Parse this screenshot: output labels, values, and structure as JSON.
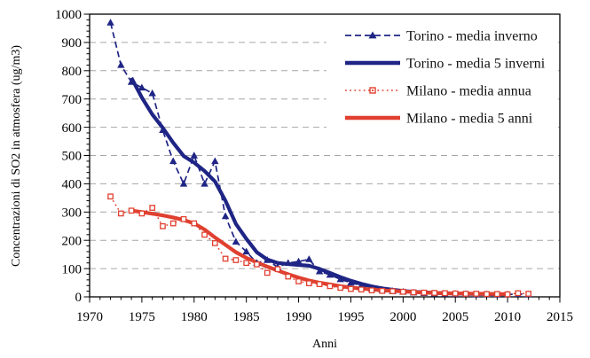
{
  "chart_data": {
    "type": "line",
    "title": "",
    "xlabel": "Anni",
    "ylabel": "Concentrazioni di SO2 in atmosfera (ug/m3)",
    "xlim": [
      1970,
      2015
    ],
    "ylim": [
      0,
      1000
    ],
    "xticks": [
      1970,
      1975,
      1980,
      1985,
      1990,
      1995,
      2000,
      2005,
      2010,
      2015
    ],
    "yticks": [
      0,
      100,
      200,
      300,
      400,
      500,
      600,
      700,
      800,
      900,
      1000
    ],
    "x_minor_step": 1,
    "y_minor_step": 20,
    "grid": "horizontal-dashed",
    "gridline_color": "#a6a6a6",
    "background": "#ffffff",
    "legend_position": "top-right",
    "series": [
      {
        "name": "Torino - media inverno",
        "color": "#1f2585",
        "line": "dashed",
        "width": 1.7,
        "marker": "triangle",
        "x": [
          1972,
          1973,
          1974,
          1975,
          1976,
          1977,
          1978,
          1979,
          1980,
          1981,
          1982,
          1983,
          1984,
          1985,
          1986,
          1987,
          1988,
          1989,
          1990,
          1991,
          1992,
          1993,
          1994,
          1995,
          1996,
          1997,
          1998,
          1999,
          2000,
          2001,
          2002,
          2003,
          2004,
          2005,
          2006,
          2007,
          2008,
          2009,
          2010,
          2011,
          2012
        ],
        "y": [
          970,
          820,
          760,
          740,
          720,
          590,
          480,
          400,
          500,
          400,
          480,
          285,
          195,
          160,
          120,
          130,
          105,
          120,
          125,
          133,
          90,
          78,
          62,
          50,
          40,
          30,
          25,
          20,
          18,
          15,
          13,
          12,
          11,
          10,
          10,
          9,
          9,
          8,
          8,
          10,
          9
        ]
      },
      {
        "name": "Torino - media 5 inverni",
        "color": "#1f2585",
        "line": "solid",
        "width": 4.2,
        "marker": "none",
        "x": [
          1974,
          1975,
          1976,
          1977,
          1978,
          1979,
          1980,
          1981,
          1982,
          1983,
          1984,
          1985,
          1986,
          1987,
          1988,
          1989,
          1990,
          1991,
          1992,
          1993,
          1994,
          1995,
          1996,
          1997,
          1998,
          1999,
          2000,
          2001,
          2002,
          2003,
          2004,
          2005,
          2006,
          2007,
          2008,
          2009,
          2010
        ],
        "y": [
          775,
          705,
          645,
          598,
          545,
          498,
          475,
          445,
          408,
          340,
          258,
          205,
          158,
          132,
          120,
          116,
          113,
          110,
          99,
          85,
          70,
          57,
          46,
          37,
          30,
          25,
          21,
          18,
          16,
          14,
          13,
          12,
          11,
          10,
          10,
          9,
          9
        ]
      },
      {
        "name": "Milano - media annua",
        "color": "#e0402f",
        "line": "dotted",
        "width": 1.5,
        "marker": "square-open",
        "x": [
          1972,
          1973,
          1974,
          1975,
          1976,
          1977,
          1978,
          1979,
          1980,
          1981,
          1982,
          1983,
          1984,
          1985,
          1986,
          1987,
          1988,
          1989,
          1990,
          1991,
          1992,
          1993,
          1994,
          1995,
          1996,
          1997,
          1998,
          1999,
          2000,
          2001,
          2002,
          2003,
          2004,
          2005,
          2006,
          2007,
          2008,
          2009,
          2010,
          2011,
          2012
        ],
        "y": [
          355,
          295,
          305,
          295,
          315,
          250,
          260,
          275,
          260,
          220,
          190,
          135,
          130,
          120,
          115,
          85,
          98,
          72,
          55,
          48,
          45,
          38,
          32,
          28,
          26,
          23,
          21,
          20,
          18,
          16,
          15,
          14,
          13,
          12,
          11,
          11,
          10,
          10,
          9,
          13,
          11
        ]
      },
      {
        "name": "Milano - media 5 anni",
        "color": "#e0402f",
        "line": "solid",
        "width": 4.2,
        "marker": "none",
        "x": [
          1974,
          1975,
          1976,
          1977,
          1978,
          1979,
          1980,
          1981,
          1982,
          1983,
          1984,
          1985,
          1986,
          1987,
          1988,
          1989,
          1990,
          1991,
          1992,
          1993,
          1994,
          1995,
          1996,
          1997,
          1998,
          1999,
          2000,
          2001,
          2002,
          2003,
          2004,
          2005,
          2006,
          2007,
          2008,
          2009,
          2010
        ],
        "y": [
          305,
          300,
          294,
          288,
          281,
          272,
          260,
          238,
          210,
          184,
          158,
          138,
          122,
          107,
          93,
          80,
          68,
          58,
          50,
          44,
          38,
          33,
          29,
          26,
          23,
          21,
          19,
          17,
          15,
          14,
          13,
          12,
          12,
          11,
          11,
          10,
          10
        ]
      }
    ]
  }
}
